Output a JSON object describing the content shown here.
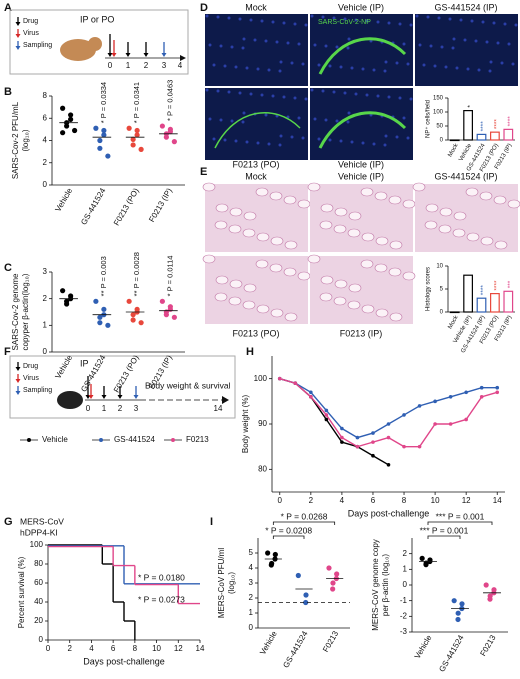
{
  "panel_labels": [
    "A",
    "B",
    "C",
    "D",
    "E",
    "F",
    "G",
    "H",
    "I"
  ],
  "schematic_a": {
    "legend": [
      "Drug",
      "Virus",
      "Sampling"
    ],
    "route": "IP or PO",
    "days": [
      "0",
      "1",
      "2",
      "3",
      "4"
    ]
  },
  "images_d": {
    "labels": [
      "Mock",
      "Vehicle (IP)",
      "GS-441524 (IP)",
      "F0213 (PO)",
      "Vehicle (IP)"
    ],
    "stain": "SARS-CoV-2-NP"
  },
  "images_e": {
    "labels": [
      "Mock",
      "Vehicle (IP)",
      "GS-441524 (IP)",
      "F0213 (PO)",
      "F0213 (IP)"
    ]
  },
  "schematic_f": {
    "legend": [
      "Drug",
      "Virus",
      "Sampling"
    ],
    "route": "IP",
    "days": [
      "0",
      "1",
      "2",
      "3"
    ],
    "end_label": "Body weight & survival",
    "end_day": "14"
  },
  "notes_g": [
    "MERS-CoV",
    "hDPP4-KI"
  ],
  "chart_data": [
    {
      "type": "dot",
      "ylabel": [
        "SARS-Cov-2 PFU/mL",
        "(log₁₀)"
      ],
      "ylim": [
        0,
        8
      ],
      "yticks": [
        0,
        2,
        4,
        6,
        8
      ],
      "groups": [
        {
          "name": "Vehicle",
          "color": "#000000",
          "values": [
            6.9,
            6.3,
            5.9,
            5.6,
            5.3,
            4.9,
            4.7
          ],
          "mean": 5.6
        },
        {
          "name": "GS-441524",
          "color": "#2f5fb3",
          "values": [
            5.1,
            4.9,
            4.5,
            4.0,
            3.3,
            2.6
          ],
          "mean": 4.3,
          "annotation": "* P = 0.0334"
        },
        {
          "name": "F0213 (PO)",
          "color": "#e8483c",
          "values": [
            5.1,
            4.9,
            4.5,
            4.1,
            3.6,
            3.2
          ],
          "mean": 4.3,
          "annotation": "* P = 0.0341"
        },
        {
          "name": "F0213 (IP)",
          "color": "#e0468a",
          "values": [
            5.3,
            5.0,
            4.8,
            4.6,
            4.3,
            3.9
          ],
          "mean": 4.6,
          "annotation": "* P = 0.0463"
        }
      ]
    },
    {
      "type": "dot",
      "ylabel": [
        "SARS-Cov-2 genome",
        "copyper β-actin(log₁₀)"
      ],
      "ylim": [
        0,
        3
      ],
      "yticks": [
        0,
        1,
        2,
        3
      ],
      "groups": [
        {
          "name": "Vehicle",
          "color": "#000000",
          "values": [
            2.3,
            2.1,
            2.0,
            1.9,
            1.8
          ],
          "mean": 2.0
        },
        {
          "name": "GS-441524",
          "color": "#2f5fb3",
          "values": [
            1.9,
            1.6,
            1.4,
            1.3,
            1.1,
            1.0
          ],
          "mean": 1.4,
          "annotation": "** P = 0.003"
        },
        {
          "name": "F0213 (PO)",
          "color": "#e8483c",
          "values": [
            1.9,
            1.6,
            1.5,
            1.4,
            1.2,
            1.1
          ],
          "mean": 1.5,
          "annotation": "** P = 0.0028"
        },
        {
          "name": "F0213 (IP)",
          "color": "#e0468a",
          "values": [
            1.9,
            1.7,
            1.6,
            1.5,
            1.4,
            1.3
          ],
          "mean": 1.55,
          "annotation": "* P = 0.0114"
        }
      ]
    },
    {
      "type": "bar",
      "ylabel": [
        "NP⁺ cells/field"
      ],
      "ylim": [
        0,
        150
      ],
      "yticks": [
        0,
        50,
        100,
        150
      ],
      "groups": [
        {
          "name": "Mock",
          "color": "#000000",
          "value": 0
        },
        {
          "name": "Vehicle",
          "color": "#000000",
          "value": 105,
          "annotation": "*"
        },
        {
          "name": "GS-441524",
          "color": "#2f5fb3",
          "value": 20,
          "annotation": "****"
        },
        {
          "name": "F0213 (PO)",
          "color": "#e8483c",
          "value": 28,
          "annotation": "****"
        },
        {
          "name": "F0213 (IP)",
          "color": "#e0468a",
          "value": 38,
          "annotation": "****"
        }
      ]
    },
    {
      "type": "bar",
      "ylabel": [
        "Histology scores"
      ],
      "ylim": [
        0,
        10
      ],
      "yticks": [
        0,
        5,
        10
      ],
      "groups": [
        {
          "name": "Mock",
          "color": "#000000",
          "value": 0
        },
        {
          "name": "Vehicle (IP)",
          "color": "#000000",
          "value": 8
        },
        {
          "name": "GS-441524 (IP)",
          "color": "#2f5fb3",
          "value": 3,
          "annotation": "****"
        },
        {
          "name": "F0213 (PO)",
          "color": "#e8483c",
          "value": 4,
          "annotation": "****"
        },
        {
          "name": "F0213 (IP)",
          "color": "#e0468a",
          "value": 4.5,
          "annotation": "***"
        }
      ]
    },
    {
      "type": "line",
      "ylabel": [
        "Body weight (%)"
      ],
      "xlabel": "Days post-challenge",
      "xlim": [
        -0.5,
        14.5
      ],
      "xticks": [
        0,
        2,
        4,
        6,
        8,
        10,
        12,
        14
      ],
      "ylim": [
        75,
        105
      ],
      "yticks": [
        80,
        90,
        100
      ],
      "x": [
        0,
        1,
        2,
        3,
        4,
        5,
        6,
        7,
        8,
        9,
        10,
        11,
        12,
        13,
        14
      ],
      "series": [
        {
          "name": "Vehicle",
          "color": "#000000",
          "values": [
            100,
            99,
            96,
            91,
            86,
            85,
            83,
            81,
            null,
            null,
            null,
            null,
            null,
            null,
            null
          ]
        },
        {
          "name": "GS-441524",
          "color": "#2f5fb3",
          "values": [
            100,
            99,
            97,
            93,
            89,
            87,
            88,
            90,
            92,
            94,
            95,
            96,
            97,
            98,
            98
          ]
        },
        {
          "name": "F0213",
          "color": "#e0468a",
          "values": [
            100,
            99,
            96,
            92,
            87,
            85,
            86,
            87,
            85,
            85,
            90,
            90,
            91,
            96,
            97
          ]
        }
      ]
    },
    {
      "type": "step",
      "ylabel": [
        "Percent survival (%)"
      ],
      "xlabel": "Days post-challenge",
      "xlim": [
        0,
        14
      ],
      "xticks": [
        0,
        2,
        4,
        6,
        8,
        10,
        12,
        14
      ],
      "ylim": [
        0,
        100
      ],
      "yticks": [
        0,
        20,
        40,
        60,
        80,
        100
      ],
      "annotations": [
        "* P = 0.0180",
        "* P = 0.0273"
      ],
      "series": [
        {
          "color": "#000000",
          "x": [
            0,
            5,
            6,
            7,
            8
          ],
          "values": [
            100,
            80,
            40,
            20,
            0
          ]
        },
        {
          "color": "#2f5fb3",
          "x": [
            0,
            7,
            14
          ],
          "values": [
            100,
            60,
            60
          ]
        },
        {
          "color": "#e0468a",
          "x": [
            0,
            6,
            8,
            12,
            14
          ],
          "values": [
            100,
            80,
            60,
            40,
            40
          ]
        }
      ]
    },
    {
      "type": "dot",
      "ylabel": [
        "MERS-CoV PFU/ml",
        "(log₁₀)"
      ],
      "ylim": [
        0,
        6
      ],
      "yticks": [
        0,
        1,
        2,
        3,
        4,
        5
      ],
      "detection_limit": 1.7,
      "comparisons": [
        "* P = 0.0268",
        "* P = 0.0208"
      ],
      "groups": [
        {
          "name": "Vehicle",
          "color": "#000000",
          "values": [
            5.0,
            4.9,
            4.6,
            4.3,
            4.2
          ],
          "mean": 4.6
        },
        {
          "name": "GS-441524",
          "color": "#2f5fb3",
          "values": [
            3.5,
            2.2,
            1.7
          ],
          "mean": 2.6
        },
        {
          "name": "F0213",
          "color": "#e0468a",
          "values": [
            4.0,
            3.6,
            3.3,
            3.0,
            2.6
          ],
          "mean": 3.3
        }
      ]
    },
    {
      "type": "dot",
      "ylabel": [
        "MERS-CoV genome copy",
        "per β-actin (log₁₀)"
      ],
      "ylim": [
        -3,
        3
      ],
      "yticks": [
        -3,
        -2,
        -1,
        0,
        1,
        2
      ],
      "comparisons": [
        "*** P = 0.001",
        "*** P = 0.001"
      ],
      "groups": [
        {
          "name": "Vehicle",
          "color": "#000000",
          "values": [
            1.7,
            1.6,
            1.5,
            1.4,
            1.3
          ],
          "mean": 1.5
        },
        {
          "name": "GS-441524",
          "color": "#2f5fb3",
          "values": [
            -1.0,
            -1.2,
            -1.5,
            -1.8,
            -2.2
          ],
          "mean": -1.5
        },
        {
          "name": "F0213",
          "color": "#e0468a",
          "values": [
            0.0,
            -0.3,
            -0.5,
            -0.7,
            -0.9
          ],
          "mean": -0.5
        }
      ]
    }
  ]
}
